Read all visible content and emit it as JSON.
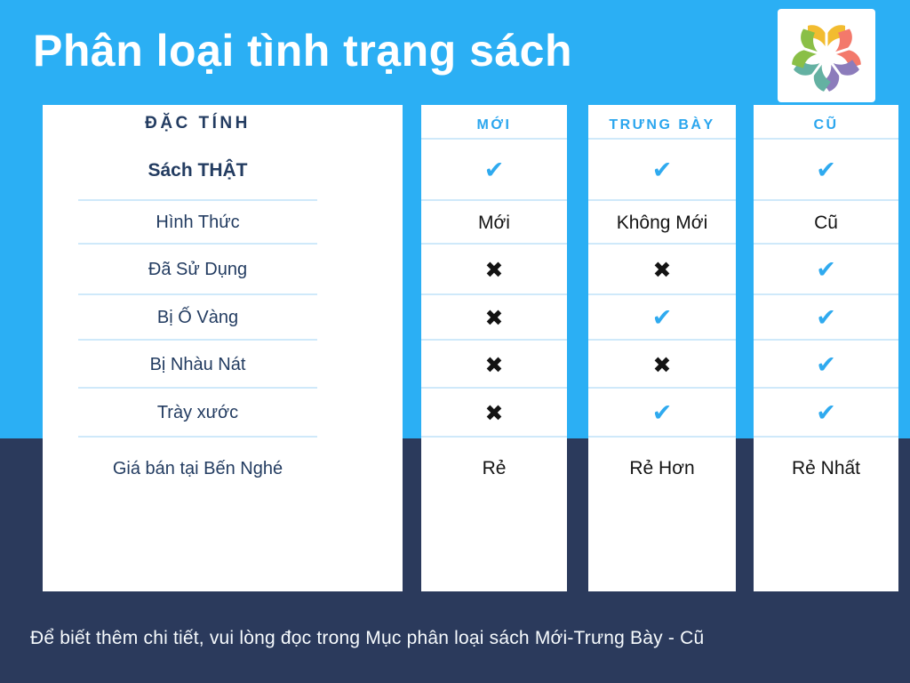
{
  "header": {
    "title": "Phân loại tình trạng sách"
  },
  "logo": {
    "name": "ben-nghe-books-logo",
    "description": "five open books arranged in a circle"
  },
  "table": {
    "feature_column": {
      "header": "ĐẶC TÍNH",
      "rows": [
        {
          "label": "Sách THẬT",
          "bold": true
        },
        {
          "label": "Hình Thức"
        },
        {
          "label": "Đã Sử Dụng"
        },
        {
          "label": "Bị Ố Vàng"
        },
        {
          "label": "Bị Nhàu Nát"
        },
        {
          "label": "Trày xước"
        },
        {
          "label": "Giá bán tại Bến Nghé"
        }
      ]
    },
    "columns": [
      {
        "id": "moi",
        "header": "MỚI",
        "cells": [
          {
            "kind": "check"
          },
          {
            "kind": "text",
            "text": "Mới"
          },
          {
            "kind": "cross"
          },
          {
            "kind": "cross"
          },
          {
            "kind": "cross"
          },
          {
            "kind": "cross"
          },
          {
            "kind": "text",
            "text": "Rẻ"
          }
        ]
      },
      {
        "id": "trung-bay",
        "header": "TRƯNG BÀY",
        "cells": [
          {
            "kind": "check"
          },
          {
            "kind": "text",
            "text": "Không Mới"
          },
          {
            "kind": "cross"
          },
          {
            "kind": "check"
          },
          {
            "kind": "cross"
          },
          {
            "kind": "check"
          },
          {
            "kind": "text",
            "text": "Rẻ Hơn"
          }
        ]
      },
      {
        "id": "cu",
        "header": "CŨ",
        "cells": [
          {
            "kind": "check"
          },
          {
            "kind": "text",
            "text": "Cũ"
          },
          {
            "kind": "check"
          },
          {
            "kind": "check"
          },
          {
            "kind": "check"
          },
          {
            "kind": "check"
          },
          {
            "kind": "text",
            "text": "Rẻ Nhất"
          }
        ]
      }
    ]
  },
  "icons": {
    "check": "✔",
    "cross": "✖"
  },
  "colors": {
    "background_top": "#2BAFF4",
    "background_bottom": "#2B3A5C",
    "accent": "#2BA6EE",
    "check": "#2FAAEF",
    "cross": "#131313",
    "line": "#CFE9FA",
    "label": "#233C61",
    "cell_text": "#141414",
    "logo_books": [
      "#F2BC30",
      "#F3796B",
      "#8C7CBB",
      "#64B1A2",
      "#8ABF47"
    ]
  },
  "footer": {
    "note": "Để biết thêm chi tiết, vui lòng đọc trong Mục phân loại sách Mới-Trưng Bày - Cũ"
  }
}
